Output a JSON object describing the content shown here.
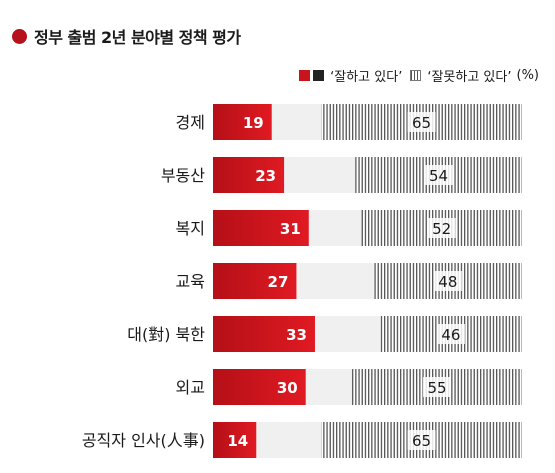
{
  "title": "정부 출범 2년 분야별 정책 평가",
  "legend": {
    "positive": "‘잘하고 있다’",
    "negative": "‘잘못하고 있다’",
    "unit": "(%)"
  },
  "colors": {
    "title_dot": "#b5121b",
    "positive": "#c8141c",
    "neutral": "#f0f0f0",
    "negative_hatch": "#555555"
  },
  "chart_data": {
    "type": "bar",
    "stacked": true,
    "orientation": "horizontal",
    "categories": [
      "경제",
      "부동산",
      "복지",
      "교육",
      "대(對) 북한",
      "외교",
      "공직자 인사(人事)"
    ],
    "series": [
      {
        "name": "‘잘하고 있다’",
        "values": [
          19,
          23,
          31,
          27,
          33,
          30,
          14
        ]
      },
      {
        "name": "‘잘못하고 있다’",
        "values": [
          65,
          54,
          52,
          48,
          46,
          55,
          65
        ]
      }
    ],
    "xlim": [
      0,
      100
    ],
    "unit": "%",
    "legend_position": "top-right",
    "grid": false
  }
}
